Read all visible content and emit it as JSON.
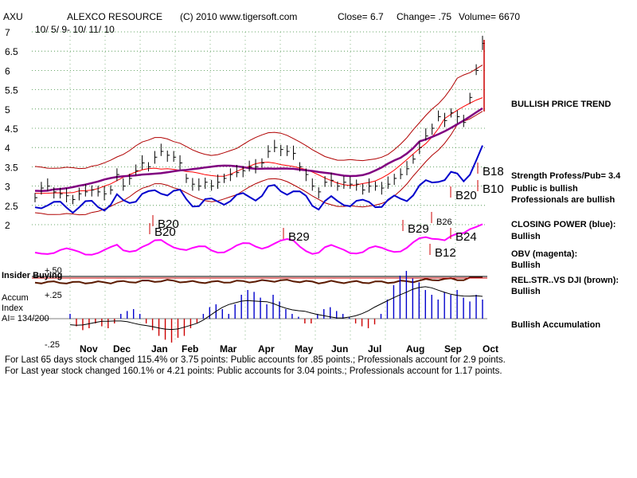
{
  "header": {
    "symbol": "AXU",
    "company": "ALEXCO RESOURCE",
    "copyright": "(C) 2010 www.tigersoft.com",
    "close": "Close=  6.7",
    "change": "Change= .75",
    "volume": "Volume= 6670",
    "date_range": "10/ 5/ 9- 10/ 11/ 10"
  },
  "side_labels": {
    "trend": "BULLISH PRICE TREND",
    "strength": "Strength Profess/Pub= 3.4",
    "public": "Public is bullish",
    "professionals": "Professionals are bullish",
    "closing_power": "CLOSING POWER (blue):",
    "closing_power_status": "Bullish",
    "obv": "OBV (magenta):",
    "obv_status": "Bullish",
    "relstr": "REL.STR..VS DJI (brown):",
    "relstr_status": "Bullish",
    "accumulation": "Bullish Accumulation"
  },
  "lower_labels": {
    "insider_buying": "Insider Buying",
    "accum": "Accum",
    "index": "Index",
    "ai": "AI= 134/200",
    "plus50": "+.50",
    "plus25": "+.25",
    "minus25": "-.25"
  },
  "footer": {
    "line1": "For Last 65 days stock changed  115.4% or  3.75 points:  Public accounts for  .85 points.;  Professionals account for  2.9 points.",
    "line2": "For Last year stock changed  160.1% or  4.21 points:  Public accounts for  3.04 points.;  Professionals account for  1.17 points."
  },
  "chart_data": {
    "type": "line",
    "y_ticks": [
      "7",
      "6.5",
      "6",
      "5.5",
      "5",
      "4.5",
      "4",
      "3.5",
      "3",
      "2.5",
      "2"
    ],
    "y_tick_values": [
      7,
      6.5,
      6,
      5.5,
      5,
      4.5,
      4,
      3.5,
      3,
      2.5,
      2
    ],
    "ylim": [
      1.9,
      7.1
    ],
    "x_labels": [
      "Nov",
      "Dec",
      "Jan",
      "Feb",
      "Mar",
      "Apr",
      "May",
      "Jun",
      "Jul",
      "Aug",
      "Sep",
      "Oct"
    ],
    "grid": true,
    "price_closes": [
      2.7,
      2.95,
      3.0,
      2.85,
      2.8,
      2.75,
      2.65,
      2.8,
      2.85,
      2.9,
      2.85,
      2.8,
      2.9,
      3.3,
      3.0,
      3.2,
      3.4,
      3.6,
      3.5,
      3.75,
      3.9,
      3.8,
      3.75,
      3.6,
      3.2,
      3.05,
      3.0,
      3.1,
      3.0,
      3.1,
      3.2,
      3.3,
      3.35,
      3.4,
      3.5,
      3.5,
      3.6,
      3.9,
      4.0,
      3.95,
      3.9,
      3.85,
      3.5,
      3.3,
      3.0,
      2.85,
      3.1,
      3.15,
      3.0,
      3.1,
      3.05,
      3.05,
      2.9,
      3.0,
      3.0,
      2.95,
      3.05,
      3.2,
      3.3,
      3.45,
      3.7,
      4.0,
      4.3,
      4.5,
      4.8,
      4.7,
      4.9,
      4.8,
      4.65,
      5.3,
      6.0,
      6.7
    ],
    "series": [
      {
        "name": "CLOSING POWER",
        "color": "#0000cc"
      },
      {
        "name": "OBV",
        "color": "#ff00ff"
      },
      {
        "name": "REL.STR..VS DJI",
        "color": "#5a1a00"
      }
    ],
    "signals": [
      "B20",
      "B20",
      "B29",
      "B29",
      "B26",
      "B12",
      "B20",
      "B24",
      "B18",
      "B10"
    ],
    "accum_index": [
      0.05,
      -0.08,
      -0.12,
      -0.1,
      -0.05,
      -0.08,
      -0.1,
      -0.05,
      0.05,
      0.08,
      0.1,
      0.05,
      -0.05,
      -0.12,
      -0.18,
      -0.22,
      -0.25,
      -0.2,
      -0.18,
      -0.1,
      -0.05,
      0.05,
      0.12,
      0.15,
      0.1,
      0.05,
      0.15,
      0.25,
      0.3,
      0.28,
      0.22,
      0.15,
      0.25,
      0.18,
      0.1,
      0.05,
      0.02,
      -0.05,
      -0.05,
      0.05,
      0.1,
      0.12,
      0.08,
      0.05,
      0.02,
      -0.05,
      -0.08,
      -0.1,
      -0.06,
      0.05,
      0.2,
      0.35,
      0.45,
      0.5,
      0.42,
      0.38,
      0.3,
      0.25,
      0.2,
      0.28,
      0.25,
      0.3,
      0.22,
      0.18,
      0.25,
      0.2
    ]
  }
}
